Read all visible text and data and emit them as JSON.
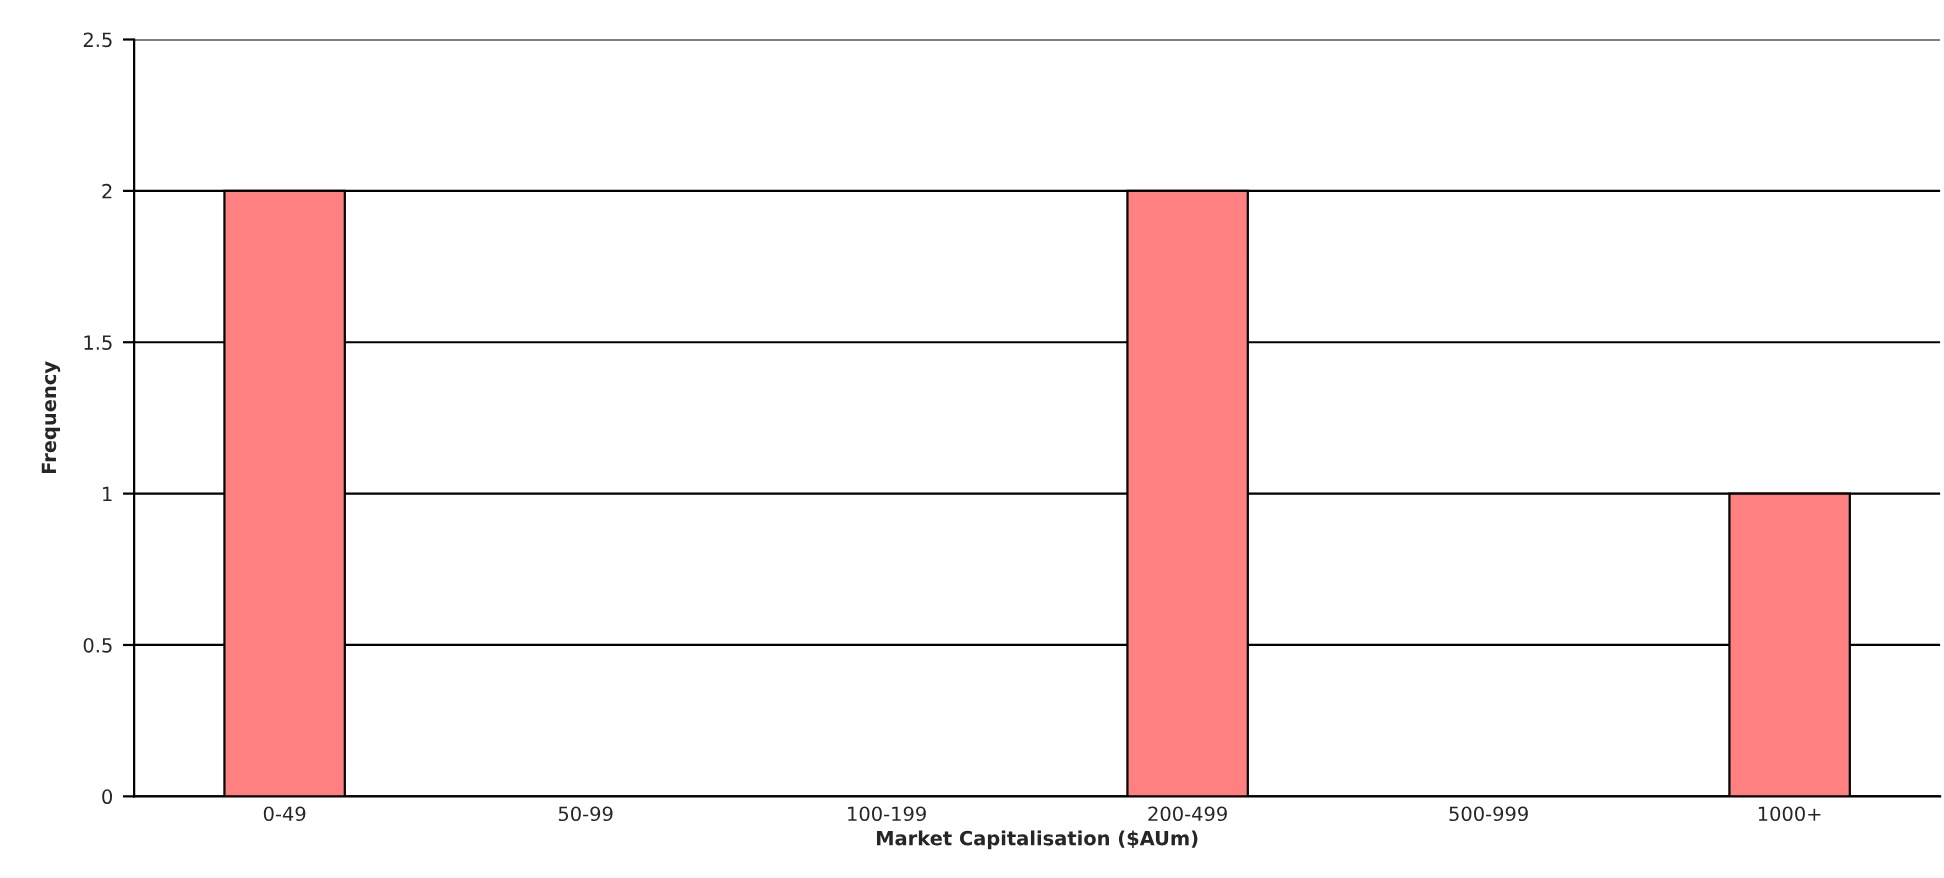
{
  "chart_data": {
    "type": "bar",
    "xlabel": "Market Capitalisation ($AUm)",
    "ylabel": "Frequency",
    "categories": [
      "0-49",
      "50-99",
      "100-199",
      "200-499",
      "500-999",
      "1000+"
    ],
    "values": [
      2,
      0,
      0,
      2,
      0,
      1
    ],
    "color": "#ff8080",
    "ylim": [
      0,
      2.5
    ],
    "yticks": [
      0,
      0.5,
      1,
      1.5,
      2,
      2.5
    ],
    "grid": "y"
  }
}
